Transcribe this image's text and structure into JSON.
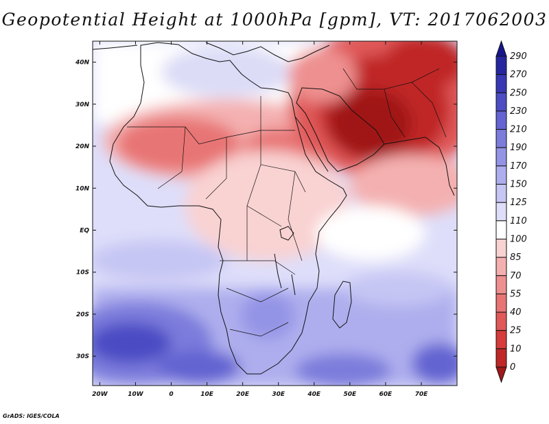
{
  "title": "Geopotential Height at 1000hPa [gpm], VT: 2017062003",
  "credit": "GrADS: IGES/COLA",
  "map": {
    "projection": "lat-lon",
    "lon_range": [
      -22,
      80
    ],
    "lat_range": [
      -37,
      45
    ],
    "lon_ticks": [
      {
        "value": -20,
        "label": "20W"
      },
      {
        "value": -10,
        "label": "10W"
      },
      {
        "value": 0,
        "label": "0"
      },
      {
        "value": 10,
        "label": "10E"
      },
      {
        "value": 20,
        "label": "20E"
      },
      {
        "value": 30,
        "label": "30E"
      },
      {
        "value": 40,
        "label": "40E"
      },
      {
        "value": 50,
        "label": "50E"
      },
      {
        "value": 60,
        "label": "60E"
      },
      {
        "value": 70,
        "label": "70E"
      }
    ],
    "lat_ticks": [
      {
        "value": 40,
        "label": "40N"
      },
      {
        "value": 30,
        "label": "30N"
      },
      {
        "value": 20,
        "label": "20N"
      },
      {
        "value": 10,
        "label": "10N"
      },
      {
        "value": 0,
        "label": "EQ"
      },
      {
        "value": -10,
        "label": "10S"
      },
      {
        "value": -20,
        "label": "20S"
      },
      {
        "value": -30,
        "label": "30S"
      }
    ]
  },
  "colorbar": {
    "levels": [
      "0",
      "10",
      "25",
      "40",
      "55",
      "70",
      "85",
      "100",
      "110",
      "125",
      "150",
      "170",
      "190",
      "210",
      "230",
      "250",
      "270",
      "290"
    ],
    "colors": [
      "#a01818",
      "#c02828",
      "#d63c3c",
      "#e05858",
      "#e87474",
      "#ee9090",
      "#f4b0b0",
      "#f9d2d2",
      "#ffffff",
      "#dedefa",
      "#c6c6f4",
      "#aeaeee",
      "#9494e6",
      "#7c7cdc",
      "#6464d2",
      "#4c4cc4",
      "#3838b4",
      "#2626a0",
      "#16168c"
    ]
  }
}
